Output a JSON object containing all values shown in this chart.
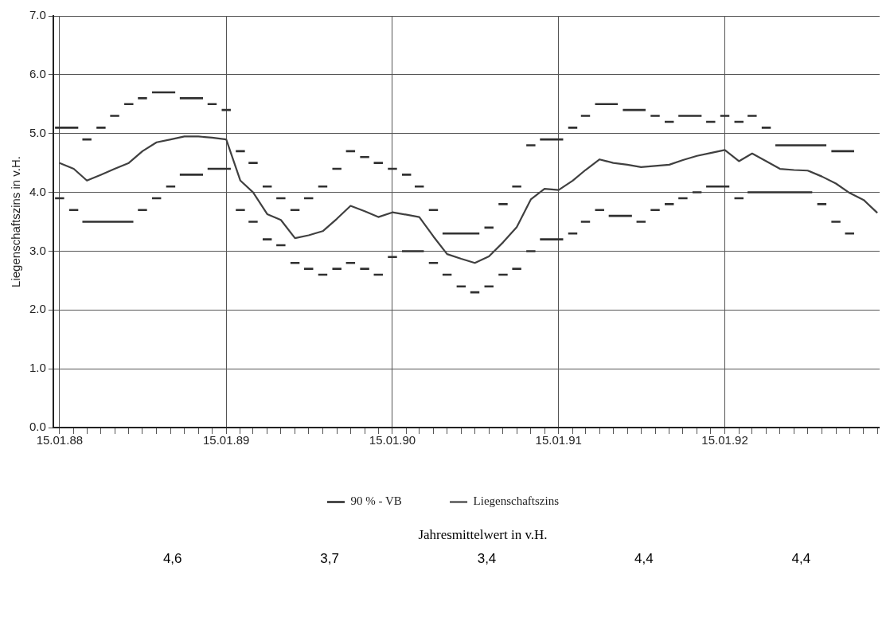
{
  "chart_data": {
    "type": "line",
    "ylabel": "Liegenschaftszins in v.H.",
    "legend": "bottom",
    "grid": true,
    "line_style": "solid",
    "annotations": [
      "Jahresmittelwert in v.H.",
      "4,6",
      "3,7",
      "3,4",
      "4,4",
      "4,4"
    ],
    "xlim": [
      "1988-01-01",
      "1992-12-20"
    ],
    "ylim": [
      0,
      7
    ],
    "yticks": [
      {
        "value": 0,
        "label": "0.0"
      },
      {
        "value": 1,
        "label": "1.0"
      },
      {
        "value": 2,
        "label": "2.0"
      },
      {
        "value": 3,
        "label": "3.0"
      },
      {
        "value": 4,
        "label": "4.0"
      },
      {
        "value": 5,
        "label": "5.0"
      },
      {
        "value": 6,
        "label": "6.0"
      },
      {
        "value": 7,
        "label": "7.0"
      }
    ],
    "xticks": [
      {
        "value": "1988-01-15",
        "label": "15.01.88"
      },
      {
        "value": "1988-02-15",
        "label": null
      },
      {
        "value": "1988-03-15",
        "label": null
      },
      {
        "value": "1988-04-15",
        "label": null
      },
      {
        "value": "1988-05-15",
        "label": null
      },
      {
        "value": "1988-06-15",
        "label": null
      },
      {
        "value": "1988-07-15",
        "label": null
      },
      {
        "value": "1988-08-15",
        "label": null
      },
      {
        "value": "1988-09-15",
        "label": null
      },
      {
        "value": "1988-10-15",
        "label": null
      },
      {
        "value": "1988-11-15",
        "label": null
      },
      {
        "value": "1988-12-15",
        "label": null
      },
      {
        "value": "1989-01-15",
        "label": "15.01.89"
      },
      {
        "value": "1989-02-15",
        "label": null
      },
      {
        "value": "1989-03-15",
        "label": null
      },
      {
        "value": "1989-04-15",
        "label": null
      },
      {
        "value": "1989-05-15",
        "label": null
      },
      {
        "value": "1989-06-15",
        "label": null
      },
      {
        "value": "1989-07-15",
        "label": null
      },
      {
        "value": "1989-08-15",
        "label": null
      },
      {
        "value": "1989-09-15",
        "label": null
      },
      {
        "value": "1989-10-15",
        "label": null
      },
      {
        "value": "1989-11-15",
        "label": null
      },
      {
        "value": "1989-12-15",
        "label": null
      },
      {
        "value": "1990-01-15",
        "label": "15.01.90"
      },
      {
        "value": "1990-02-15",
        "label": null
      },
      {
        "value": "1990-03-15",
        "label": null
      },
      {
        "value": "1990-04-15",
        "label": null
      },
      {
        "value": "1990-05-15",
        "label": null
      },
      {
        "value": "1990-06-15",
        "label": null
      },
      {
        "value": "1990-07-15",
        "label": null
      },
      {
        "value": "1990-08-15",
        "label": null
      },
      {
        "value": "1990-09-15",
        "label": null
      },
      {
        "value": "1990-10-15",
        "label": null
      },
      {
        "value": "1990-11-15",
        "label": null
      },
      {
        "value": "1990-12-15",
        "label": null
      },
      {
        "value": "1991-01-15",
        "label": "15.01.91"
      },
      {
        "value": "1991-02-15",
        "label": null
      },
      {
        "value": "1991-03-15",
        "label": null
      },
      {
        "value": "1991-04-15",
        "label": null
      },
      {
        "value": "1991-05-15",
        "label": null
      },
      {
        "value": "1991-06-15",
        "label": null
      },
      {
        "value": "1991-07-15",
        "label": null
      },
      {
        "value": "1991-08-15",
        "label": null
      },
      {
        "value": "1991-09-15",
        "label": null
      },
      {
        "value": "1991-10-15",
        "label": null
      },
      {
        "value": "1991-11-15",
        "label": null
      },
      {
        "value": "1991-12-15",
        "label": null
      },
      {
        "value": "1992-01-15",
        "label": "15.01.92"
      },
      {
        "value": "1992-02-15",
        "label": null
      },
      {
        "value": "1992-03-15",
        "label": null
      },
      {
        "value": "1992-04-15",
        "label": null
      },
      {
        "value": "1992-05-15",
        "label": null
      },
      {
        "value": "1992-06-15",
        "label": null
      },
      {
        "value": "1992-07-15",
        "label": null
      },
      {
        "value": "1992-08-15",
        "label": null
      },
      {
        "value": "1992-09-15",
        "label": null
      },
      {
        "value": "1992-10-15",
        "label": null
      },
      {
        "value": "1992-11-15",
        "label": null
      },
      {
        "value": "1992-12-15",
        "label": null
      }
    ],
    "x": [
      "1988-01-15",
      "1988-02-15",
      "1988-03-15",
      "1988-04-15",
      "1988-05-15",
      "1988-06-15",
      "1988-07-15",
      "1988-08-15",
      "1988-09-15",
      "1988-10-15",
      "1988-11-15",
      "1988-12-15",
      "1989-01-15",
      "1989-02-15",
      "1989-03-15",
      "1989-04-15",
      "1989-05-15",
      "1989-06-15",
      "1989-07-15",
      "1989-08-15",
      "1989-09-15",
      "1989-10-15",
      "1989-11-15",
      "1989-12-15",
      "1990-01-15",
      "1990-02-15",
      "1990-03-15",
      "1990-04-15",
      "1990-05-15",
      "1990-06-15",
      "1990-07-15",
      "1990-08-15",
      "1990-09-15",
      "1990-10-15",
      "1990-11-15",
      "1990-12-15",
      "1991-01-15",
      "1991-02-15",
      "1991-03-15",
      "1991-04-15",
      "1991-05-15",
      "1991-06-15",
      "1991-07-15",
      "1991-08-15",
      "1991-09-15",
      "1991-10-15",
      "1991-11-15",
      "1991-12-15",
      "1992-01-15",
      "1992-02-15",
      "1992-03-15",
      "1992-04-15",
      "1992-05-15",
      "1992-06-15",
      "1992-07-15",
      "1992-08-15",
      "1992-09-15",
      "1992-10-15",
      "1992-11-15",
      "1992-12-15"
    ],
    "series": [
      {
        "name": "90 % - VB",
        "color": "#303030",
        "x": [
          "1988-01-05",
          "1988-02-25",
          "1988-02-28",
          "1988-03-05",
          "1988-03-25",
          "1988-03-28",
          "1988-04-05",
          "1988-04-25",
          "1988-04-28",
          "1988-05-05",
          "1988-05-25",
          "1988-05-28",
          "1988-06-05",
          "1988-06-25",
          "1988-06-28",
          "1988-07-05",
          "1988-07-25",
          "1988-07-28",
          "1988-08-05",
          "1988-09-25",
          "1988-09-28",
          "1988-10-05",
          "1988-11-25",
          "1988-11-28",
          "1988-12-05",
          "1988-12-25",
          "1988-12-28",
          "1989-01-05",
          "1989-01-25",
          "1989-01-28",
          "1989-02-05",
          "1989-02-25",
          "1989-02-28",
          "1989-03-05",
          "1989-03-25",
          "1989-03-28",
          "1989-04-05",
          "1989-04-25",
          "1989-04-28",
          "1989-05-05",
          "1989-05-25",
          "1989-05-28",
          "1989-06-05",
          "1989-06-25",
          "1989-06-28",
          "1989-07-05",
          "1989-07-25",
          "1989-07-28",
          "1989-08-05",
          "1989-08-25",
          "1989-08-28",
          "1989-09-05",
          "1989-09-25",
          "1989-09-28",
          "1989-10-05",
          "1989-10-25",
          "1989-10-28",
          "1989-11-05",
          "1989-11-25",
          "1989-11-28",
          "1989-12-05",
          "1989-12-25",
          "1989-12-28",
          "1990-01-05",
          "1990-01-25",
          "1990-01-28",
          "1990-02-05",
          "1990-02-25",
          "1990-02-28",
          "1990-03-05",
          "1990-03-25",
          "1990-03-28",
          "1990-04-05",
          "1990-04-25",
          "1990-04-28",
          "1990-05-05",
          "1990-07-25",
          "1990-07-28",
          "1990-08-05",
          "1990-08-25",
          "1990-08-28",
          "1990-09-05",
          "1990-09-25",
          "1990-09-28",
          "1990-10-05",
          "1990-10-25",
          "1990-10-28",
          "1990-11-05",
          "1990-11-25",
          "1990-11-28",
          "1990-12-05",
          "1991-01-25",
          "1991-01-28",
          "1991-02-05",
          "1991-02-25",
          "1991-02-28",
          "1991-03-05",
          "1991-03-25",
          "1991-03-28",
          "1991-04-05",
          "1991-05-25",
          "1991-05-28",
          "1991-06-05",
          "1991-07-25",
          "1991-07-28",
          "1991-08-05",
          "1991-08-25",
          "1991-08-28",
          "1991-09-05",
          "1991-09-25",
          "1991-09-28",
          "1991-10-05",
          "1991-11-25",
          "1991-11-28",
          "1991-12-05",
          "1991-12-25",
          "1991-12-28",
          "1992-01-05",
          "1992-01-25",
          "1992-01-28",
          "1992-02-05",
          "1992-02-25",
          "1992-02-28",
          "1992-03-05",
          "1992-03-25",
          "1992-03-28",
          "1992-04-05",
          "1992-04-25",
          "1992-04-28",
          "1992-05-05",
          "1992-08-25",
          "1992-08-28",
          "1992-09-05",
          "1992-10-25"
        ],
        "values": [
          5.1,
          5.1,
          null,
          4.9,
          4.9,
          null,
          5.1,
          5.1,
          null,
          5.3,
          5.3,
          null,
          5.5,
          5.5,
          null,
          5.6,
          5.6,
          null,
          5.7,
          5.7,
          null,
          5.6,
          5.6,
          null,
          5.5,
          5.5,
          null,
          5.4,
          5.4,
          null,
          4.7,
          4.7,
          null,
          4.5,
          4.5,
          null,
          4.1,
          4.1,
          null,
          3.9,
          3.9,
          null,
          3.7,
          3.7,
          null,
          3.9,
          3.9,
          null,
          4.1,
          4.1,
          null,
          4.4,
          4.4,
          null,
          4.7,
          4.7,
          null,
          4.6,
          4.6,
          null,
          4.5,
          4.5,
          null,
          4.4,
          4.4,
          null,
          4.3,
          4.3,
          null,
          4.1,
          4.1,
          null,
          3.7,
          3.7,
          null,
          3.3,
          3.3,
          null,
          3.4,
          3.4,
          null,
          3.8,
          3.8,
          null,
          4.1,
          4.1,
          null,
          4.8,
          4.8,
          null,
          4.9,
          4.9,
          null,
          5.1,
          5.1,
          null,
          5.3,
          5.3,
          null,
          5.5,
          5.5,
          null,
          5.4,
          5.4,
          null,
          5.3,
          5.3,
          null,
          5.2,
          5.2,
          null,
          5.3,
          5.3,
          null,
          5.2,
          5.2,
          null,
          5.3,
          5.3,
          null,
          5.2,
          5.2,
          null,
          5.3,
          5.3,
          null,
          5.1,
          5.1,
          null,
          4.8,
          4.8,
          null,
          4.7,
          4.7
        ]
      },
      {
        "color": "#303030",
        "x": [
          "1988-01-05",
          "1988-01-25",
          "1988-01-28",
          "1988-02-05",
          "1988-02-25",
          "1988-02-28",
          "1988-03-05",
          "1988-06-25",
          "1988-06-28",
          "1988-07-05",
          "1988-07-25",
          "1988-07-28",
          "1988-08-05",
          "1988-08-25",
          "1988-08-28",
          "1988-09-05",
          "1988-09-25",
          "1988-09-28",
          "1988-10-05",
          "1988-11-25",
          "1988-11-28",
          "1988-12-05",
          "1989-01-25",
          "1989-01-28",
          "1989-02-05",
          "1989-02-25",
          "1989-02-28",
          "1989-03-05",
          "1989-03-25",
          "1989-03-28",
          "1989-04-05",
          "1989-04-25",
          "1989-04-28",
          "1989-05-05",
          "1989-05-25",
          "1989-05-28",
          "1989-06-05",
          "1989-06-25",
          "1989-06-28",
          "1989-07-05",
          "1989-07-25",
          "1989-07-28",
          "1989-08-05",
          "1989-08-25",
          "1989-08-28",
          "1989-09-05",
          "1989-09-25",
          "1989-09-28",
          "1989-10-05",
          "1989-10-25",
          "1989-10-28",
          "1989-11-05",
          "1989-11-25",
          "1989-11-28",
          "1989-12-05",
          "1989-12-25",
          "1989-12-28",
          "1990-01-05",
          "1990-01-25",
          "1990-01-28",
          "1990-02-05",
          "1990-03-25",
          "1990-03-28",
          "1990-04-05",
          "1990-04-25",
          "1990-04-28",
          "1990-05-05",
          "1990-05-25",
          "1990-05-28",
          "1990-06-05",
          "1990-06-25",
          "1990-06-28",
          "1990-07-05",
          "1990-07-25",
          "1990-07-28",
          "1990-08-05",
          "1990-08-25",
          "1990-08-28",
          "1990-09-05",
          "1990-09-25",
          "1990-09-28",
          "1990-10-05",
          "1990-10-25",
          "1990-10-28",
          "1990-11-05",
          "1990-11-25",
          "1990-11-28",
          "1990-12-05",
          "1991-01-25",
          "1991-01-28",
          "1991-02-05",
          "1991-02-25",
          "1991-02-28",
          "1991-03-05",
          "1991-03-25",
          "1991-03-28",
          "1991-04-05",
          "1991-04-25",
          "1991-04-28",
          "1991-05-05",
          "1991-06-25",
          "1991-06-28",
          "1991-07-05",
          "1991-07-25",
          "1991-07-28",
          "1991-08-05",
          "1991-08-25",
          "1991-08-28",
          "1991-09-05",
          "1991-09-25",
          "1991-09-28",
          "1991-10-05",
          "1991-10-25",
          "1991-10-28",
          "1991-11-05",
          "1991-11-25",
          "1991-11-28",
          "1991-12-05",
          "1992-01-25",
          "1992-01-28",
          "1992-02-05",
          "1992-02-25",
          "1992-02-28",
          "1992-03-05",
          "1992-07-25",
          "1992-07-28",
          "1992-08-05",
          "1992-08-25",
          "1992-08-28",
          "1992-09-05",
          "1992-09-25",
          "1992-09-28",
          "1992-10-05",
          "1992-10-25"
        ],
        "values": [
          3.9,
          3.9,
          null,
          3.7,
          3.7,
          null,
          3.5,
          3.5,
          null,
          3.7,
          3.7,
          null,
          3.9,
          3.9,
          null,
          4.1,
          4.1,
          null,
          4.3,
          4.3,
          null,
          4.4,
          4.4,
          null,
          3.7,
          3.7,
          null,
          3.5,
          3.5,
          null,
          3.2,
          3.2,
          null,
          3.1,
          3.1,
          null,
          2.8,
          2.8,
          null,
          2.7,
          2.7,
          null,
          2.6,
          2.6,
          null,
          2.7,
          2.7,
          null,
          2.8,
          2.8,
          null,
          2.7,
          2.7,
          null,
          2.6,
          2.6,
          null,
          2.9,
          2.9,
          null,
          3.0,
          3.0,
          null,
          2.8,
          2.8,
          null,
          2.6,
          2.6,
          null,
          2.4,
          2.4,
          null,
          2.3,
          2.3,
          null,
          2.4,
          2.4,
          null,
          2.6,
          2.6,
          null,
          2.7,
          2.7,
          null,
          3.0,
          3.0,
          null,
          3.2,
          3.2,
          null,
          3.3,
          3.3,
          null,
          3.5,
          3.5,
          null,
          3.7,
          3.7,
          null,
          3.6,
          3.6,
          null,
          3.5,
          3.5,
          null,
          3.7,
          3.7,
          null,
          3.8,
          3.8,
          null,
          3.9,
          3.9,
          null,
          4.0,
          4.0,
          null,
          4.1,
          4.1,
          null,
          3.9,
          3.9,
          null,
          4.0,
          4.0,
          null,
          3.8,
          3.8,
          null,
          3.5,
          3.5,
          null,
          3.3,
          3.3
        ]
      },
      {
        "name": "Liegenschaftszins",
        "color": "#404040",
        "values": [
          4.5,
          4.4,
          4.2,
          4.3,
          4.4,
          4.5,
          4.7,
          4.85,
          4.9,
          4.95,
          4.95,
          4.93,
          4.9,
          4.2,
          4.0,
          3.63,
          3.53,
          3.22,
          3.27,
          3.34,
          3.55,
          3.77,
          3.68,
          3.58,
          3.66,
          3.62,
          3.58,
          3.25,
          2.95,
          2.87,
          2.8,
          2.91,
          3.15,
          3.41,
          3.88,
          4.06,
          4.04,
          4.2,
          4.38,
          4.56,
          4.5,
          4.47,
          4.43,
          4.45,
          4.47,
          4.55,
          4.62,
          4.67,
          4.72,
          4.53,
          4.66,
          4.53,
          4.4,
          4.38,
          4.37,
          4.27,
          4.15,
          3.99,
          3.87,
          3.65
        ]
      }
    ]
  }
}
